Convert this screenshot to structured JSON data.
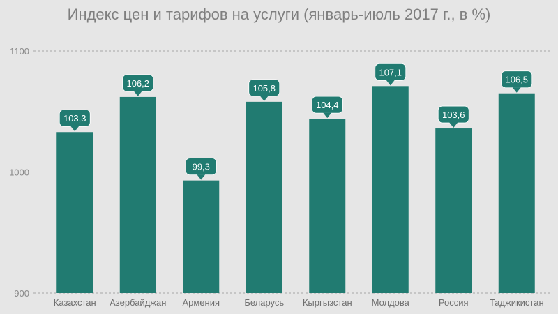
{
  "chart_data": {
    "type": "bar",
    "title": "Индекс цен и тарифов на услуги (январь-июль 2017 г., в %)",
    "xlabel": "",
    "ylabel": "",
    "ylim": [
      900,
      1100
    ],
    "yticks": [
      900,
      1000,
      1100
    ],
    "ytick_labels": [
      "900",
      "1000",
      "1100"
    ],
    "grid": true,
    "categories": [
      "Казахстан",
      "Азербайджан",
      "Армения",
      "Беларусь",
      "Кыргызстан",
      "Молдова",
      "Россия",
      "Таджикистан"
    ],
    "values": [
      1033,
      1062,
      993,
      1058,
      1044,
      1071,
      1036,
      1065
    ],
    "data_labels": [
      "103,3",
      "106,2",
      "99,3",
      "105,8",
      "104,4",
      "107,1",
      "103,6",
      "106,5"
    ],
    "colors": {
      "bar": "#217b71",
      "grid": "#a6a6a6",
      "background": "#e6e6e6"
    }
  }
}
